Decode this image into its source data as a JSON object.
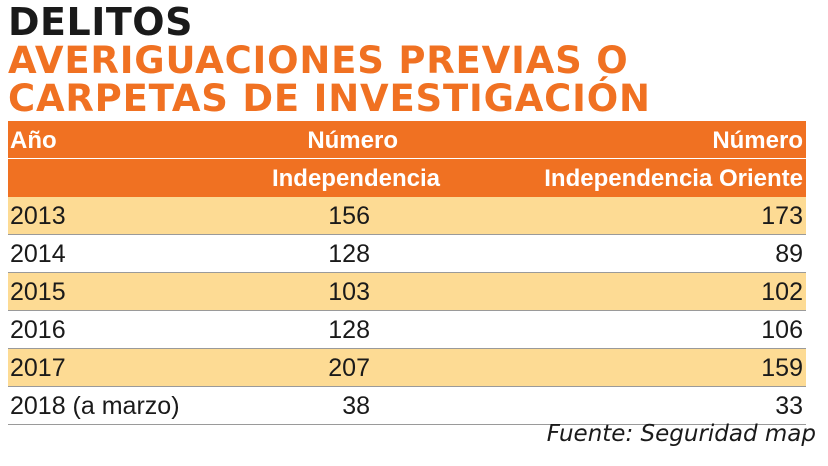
{
  "title": {
    "kicker": "DELITOS",
    "line1": "AVERIGUACIONES PREVIAS O",
    "line2": "CARPETAS DE INVESTIGACIÓN"
  },
  "colors": {
    "accent": "#f07122",
    "row_highlight": "#fddb94",
    "text": "#1a1a1a"
  },
  "chart_data": {
    "type": "table",
    "columns": [
      {
        "top": "Año",
        "bottom": ""
      },
      {
        "top": "Número",
        "bottom": "Independencia"
      },
      {
        "top": "Número",
        "bottom": "Independencia Oriente"
      }
    ],
    "rows": [
      {
        "year": "2013",
        "independencia": "156",
        "independencia_oriente": "173"
      },
      {
        "year": "2014",
        "independencia": "128",
        "independencia_oriente": "89"
      },
      {
        "year": "2015",
        "independencia": "103",
        "independencia_oriente": "102"
      },
      {
        "year": "2016",
        "independencia": "128",
        "independencia_oriente": "106"
      },
      {
        "year": "2017",
        "independencia": "207",
        "independencia_oriente": "159"
      },
      {
        "year": "2018 (a marzo)",
        "independencia": "38",
        "independencia_oriente": "33"
      }
    ]
  },
  "source": "Fuente: Seguridad map"
}
